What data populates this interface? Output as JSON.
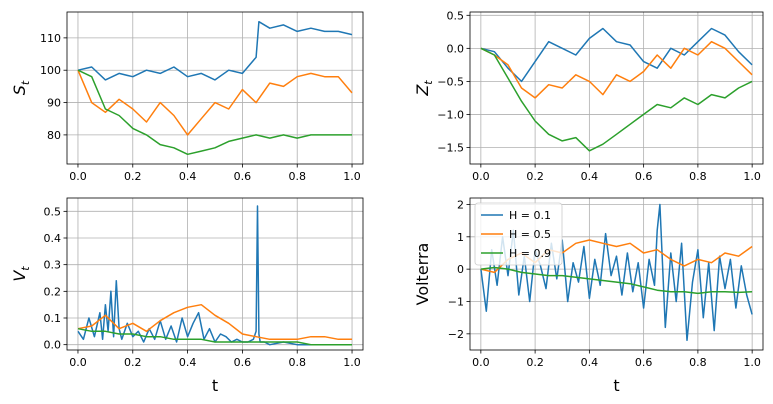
{
  "colors": {
    "H01": "#1f77b4",
    "H05": "#ff7f0e",
    "H09": "#2ca02c"
  },
  "chart_data": [
    {
      "type": "line",
      "ylabel_main": "S",
      "ylabel_sub": "t",
      "xlabel": "",
      "xlim": [
        -0.04,
        1.04
      ],
      "ylim": [
        71,
        118
      ],
      "xticks": [
        "0.0",
        "0.2",
        "0.4",
        "0.6",
        "0.8",
        "1.0"
      ],
      "yticks": [
        "80",
        "90",
        "100",
        "110"
      ],
      "grid": true,
      "series": [
        {
          "color_key": "H01",
          "x": [
            0,
            0.05,
            0.1,
            0.15,
            0.2,
            0.25,
            0.3,
            0.35,
            0.4,
            0.45,
            0.5,
            0.55,
            0.6,
            0.65,
            0.66,
            0.7,
            0.75,
            0.8,
            0.85,
            0.9,
            0.95,
            1.0
          ],
          "y": [
            100,
            101,
            97,
            99,
            98,
            100,
            99,
            101,
            98,
            99,
            97,
            100,
            99,
            104,
            115,
            113,
            114,
            112,
            113,
            112,
            112,
            111
          ]
        },
        {
          "color_key": "H05",
          "x": [
            0,
            0.05,
            0.1,
            0.15,
            0.2,
            0.25,
            0.3,
            0.35,
            0.4,
            0.45,
            0.5,
            0.55,
            0.6,
            0.65,
            0.7,
            0.75,
            0.8,
            0.85,
            0.9,
            0.95,
            1.0
          ],
          "y": [
            100,
            90,
            87,
            91,
            88,
            84,
            90,
            86,
            80,
            85,
            90,
            88,
            94,
            90,
            96,
            95,
            98,
            99,
            98,
            98,
            93
          ]
        },
        {
          "color_key": "H09",
          "x": [
            0,
            0.05,
            0.1,
            0.15,
            0.2,
            0.25,
            0.3,
            0.35,
            0.4,
            0.45,
            0.5,
            0.55,
            0.6,
            0.65,
            0.7,
            0.75,
            0.8,
            0.85,
            0.9,
            0.95,
            1.0
          ],
          "y": [
            100,
            98,
            88,
            86,
            82,
            80,
            77,
            76,
            74,
            75,
            76,
            78,
            79,
            80,
            79,
            80,
            79,
            80,
            80,
            80,
            80
          ]
        }
      ]
    },
    {
      "type": "line",
      "ylabel_main": "Z",
      "ylabel_sub": "t",
      "xlabel": "",
      "xlim": [
        -0.04,
        1.04
      ],
      "ylim": [
        -1.75,
        0.55
      ],
      "xticks": [
        "0.0",
        "0.2",
        "0.4",
        "0.6",
        "0.8",
        "1.0"
      ],
      "yticks": [
        "−1.5",
        "−1.0",
        "−0.5",
        "0.0",
        "0.5"
      ],
      "ytick_values": [
        -1.5,
        -1.0,
        -0.5,
        0.0,
        0.5
      ],
      "grid": true,
      "series": [
        {
          "color_key": "H01",
          "x": [
            0,
            0.05,
            0.1,
            0.15,
            0.2,
            0.25,
            0.3,
            0.35,
            0.4,
            0.45,
            0.5,
            0.55,
            0.6,
            0.65,
            0.7,
            0.75,
            0.8,
            0.85,
            0.9,
            0.95,
            1.0
          ],
          "y": [
            0,
            -0.05,
            -0.3,
            -0.5,
            -0.2,
            0.1,
            0.0,
            -0.1,
            0.15,
            0.3,
            0.1,
            0.05,
            -0.2,
            -0.3,
            0.0,
            -0.1,
            0.1,
            0.3,
            0.2,
            -0.05,
            -0.25
          ]
        },
        {
          "color_key": "H05",
          "x": [
            0,
            0.05,
            0.1,
            0.15,
            0.2,
            0.25,
            0.3,
            0.35,
            0.4,
            0.45,
            0.5,
            0.55,
            0.6,
            0.65,
            0.7,
            0.75,
            0.8,
            0.85,
            0.9,
            0.95,
            1.0
          ],
          "y": [
            0,
            -0.1,
            -0.25,
            -0.6,
            -0.75,
            -0.55,
            -0.6,
            -0.4,
            -0.5,
            -0.7,
            -0.4,
            -0.5,
            -0.35,
            -0.1,
            -0.3,
            0.0,
            -0.1,
            0.1,
            0.0,
            -0.2,
            -0.4
          ]
        },
        {
          "color_key": "H09",
          "x": [
            0,
            0.05,
            0.1,
            0.15,
            0.2,
            0.25,
            0.3,
            0.35,
            0.4,
            0.45,
            0.5,
            0.55,
            0.6,
            0.65,
            0.7,
            0.75,
            0.8,
            0.85,
            0.9,
            0.95,
            1.0
          ],
          "y": [
            0,
            -0.1,
            -0.45,
            -0.8,
            -1.1,
            -1.3,
            -1.4,
            -1.35,
            -1.55,
            -1.45,
            -1.3,
            -1.15,
            -1.0,
            -0.85,
            -0.9,
            -0.75,
            -0.85,
            -0.7,
            -0.75,
            -0.6,
            -0.5
          ]
        }
      ]
    },
    {
      "type": "line",
      "ylabel_main": "V",
      "ylabel_sub": "t",
      "xlabel": "t",
      "xlim": [
        -0.04,
        1.04
      ],
      "ylim": [
        -0.02,
        0.55
      ],
      "xticks": [
        "0.0",
        "0.2",
        "0.4",
        "0.6",
        "0.8",
        "1.0"
      ],
      "yticks": [
        "0.0",
        "0.1",
        "0.2",
        "0.3",
        "0.4",
        "0.5"
      ],
      "ytick_values": [
        0.0,
        0.1,
        0.2,
        0.3,
        0.4,
        0.5
      ],
      "grid": true,
      "series": [
        {
          "color_key": "H01",
          "x": [
            0,
            0.02,
            0.04,
            0.06,
            0.08,
            0.09,
            0.1,
            0.11,
            0.12,
            0.13,
            0.14,
            0.15,
            0.16,
            0.18,
            0.2,
            0.22,
            0.24,
            0.26,
            0.28,
            0.3,
            0.32,
            0.34,
            0.36,
            0.38,
            0.4,
            0.42,
            0.44,
            0.46,
            0.48,
            0.5,
            0.52,
            0.54,
            0.56,
            0.58,
            0.6,
            0.62,
            0.64,
            0.65,
            0.655,
            0.66,
            0.665,
            0.68,
            0.7,
            0.75,
            0.8,
            0.85,
            0.9,
            0.95,
            1.0
          ],
          "y": [
            0.05,
            0.02,
            0.1,
            0.03,
            0.12,
            0.02,
            0.15,
            0.05,
            0.2,
            0.03,
            0.24,
            0.06,
            0.02,
            0.08,
            0.03,
            0.05,
            0.01,
            0.06,
            0.02,
            0.09,
            0.02,
            0.07,
            0.01,
            0.1,
            0.03,
            0.08,
            0.12,
            0.02,
            0.06,
            0.01,
            0.04,
            0.03,
            0.01,
            0.02,
            0.01,
            0.01,
            0.02,
            0.05,
            0.52,
            0.04,
            0.01,
            0.01,
            0.0,
            0.01,
            0.0,
            0.0,
            0.0,
            0.0,
            0.0
          ]
        },
        {
          "color_key": "H05",
          "x": [
            0,
            0.05,
            0.1,
            0.15,
            0.2,
            0.25,
            0.3,
            0.35,
            0.4,
            0.45,
            0.5,
            0.55,
            0.6,
            0.65,
            0.7,
            0.75,
            0.8,
            0.85,
            0.9,
            0.95,
            1.0
          ],
          "y": [
            0.06,
            0.07,
            0.11,
            0.06,
            0.08,
            0.05,
            0.09,
            0.12,
            0.14,
            0.15,
            0.11,
            0.08,
            0.04,
            0.03,
            0.02,
            0.02,
            0.02,
            0.03,
            0.03,
            0.02,
            0.02
          ]
        },
        {
          "color_key": "H09",
          "x": [
            0,
            0.05,
            0.1,
            0.15,
            0.2,
            0.25,
            0.3,
            0.35,
            0.4,
            0.45,
            0.5,
            0.55,
            0.6,
            0.65,
            0.7,
            0.75,
            0.8,
            0.85,
            0.9,
            0.95,
            1.0
          ],
          "y": [
            0.06,
            0.05,
            0.05,
            0.04,
            0.04,
            0.03,
            0.03,
            0.02,
            0.02,
            0.02,
            0.01,
            0.01,
            0.01,
            0.01,
            0.01,
            0.01,
            0.01,
            0.0,
            0.0,
            0.0,
            0.0
          ]
        }
      ]
    },
    {
      "type": "line",
      "ylabel_main": "Volterra",
      "ylabel_sub": "",
      "xlabel": "t",
      "xlim": [
        -0.04,
        1.04
      ],
      "ylim": [
        -2.5,
        2.2
      ],
      "xticks": [
        "0.0",
        "0.2",
        "0.4",
        "0.6",
        "0.8",
        "1.0"
      ],
      "yticks": [
        "−2",
        "−1",
        "0",
        "1",
        "2"
      ],
      "ytick_values": [
        -2,
        -1,
        0,
        1,
        2
      ],
      "grid": true,
      "legend": {
        "placement": "upper-left",
        "entries": [
          "H = 0.1",
          "H = 0.5",
          "H = 0.9"
        ]
      },
      "series": [
        {
          "color_key": "H01",
          "x": [
            0,
            0.02,
            0.04,
            0.06,
            0.08,
            0.1,
            0.12,
            0.14,
            0.16,
            0.18,
            0.2,
            0.22,
            0.24,
            0.26,
            0.28,
            0.3,
            0.32,
            0.34,
            0.36,
            0.38,
            0.4,
            0.42,
            0.44,
            0.46,
            0.48,
            0.5,
            0.52,
            0.54,
            0.56,
            0.58,
            0.6,
            0.62,
            0.64,
            0.65,
            0.66,
            0.68,
            0.7,
            0.72,
            0.74,
            0.76,
            0.78,
            0.8,
            0.82,
            0.84,
            0.86,
            0.88,
            0.9,
            0.92,
            0.94,
            0.96,
            0.98,
            1.0
          ],
          "y": [
            0.0,
            -1.3,
            0.6,
            -0.5,
            1.0,
            -0.2,
            1.2,
            -0.8,
            0.4,
            -1.0,
            0.6,
            0.1,
            -0.6,
            0.8,
            -0.3,
            0.9,
            -1.0,
            0.2,
            -0.4,
            0.7,
            -0.9,
            0.3,
            -0.5,
            1.1,
            -0.2,
            0.4,
            -0.8,
            0.5,
            -0.7,
            0.2,
            -1.2,
            0.3,
            -0.5,
            1.2,
            2.0,
            -1.8,
            0.5,
            -1.0,
            0.8,
            -2.2,
            -0.4,
            0.6,
            -1.5,
            0.2,
            -1.9,
            0.4,
            -0.6,
            0.3,
            -1.2,
            0.1,
            -0.8,
            -1.4
          ]
        },
        {
          "color_key": "H05",
          "x": [
            0,
            0.05,
            0.1,
            0.15,
            0.2,
            0.25,
            0.3,
            0.35,
            0.4,
            0.45,
            0.5,
            0.55,
            0.6,
            0.65,
            0.7,
            0.75,
            0.8,
            0.85,
            0.9,
            0.95,
            1.0
          ],
          "y": [
            0.0,
            -0.1,
            0.3,
            0.5,
            0.2,
            0.6,
            0.5,
            0.8,
            0.9,
            0.8,
            0.7,
            0.8,
            0.5,
            0.6,
            0.3,
            0.1,
            0.3,
            0.2,
            0.5,
            0.4,
            0.7
          ]
        },
        {
          "color_key": "H09",
          "x": [
            0,
            0.05,
            0.1,
            0.15,
            0.2,
            0.25,
            0.3,
            0.35,
            0.4,
            0.45,
            0.5,
            0.55,
            0.6,
            0.65,
            0.7,
            0.75,
            0.8,
            0.85,
            0.9,
            0.95,
            1.0
          ],
          "y": [
            0.0,
            0.05,
            0.0,
            -0.1,
            -0.15,
            -0.2,
            -0.2,
            -0.25,
            -0.3,
            -0.35,
            -0.4,
            -0.45,
            -0.55,
            -0.65,
            -0.7,
            -0.7,
            -0.75,
            -0.7,
            -0.7,
            -0.72,
            -0.7
          ]
        }
      ]
    }
  ]
}
